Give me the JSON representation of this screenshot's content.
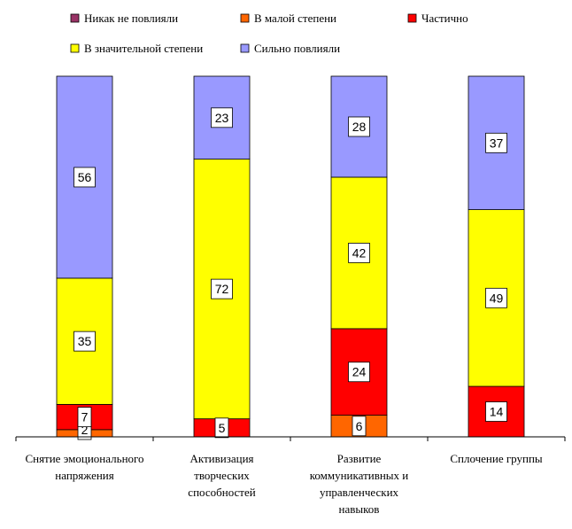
{
  "chart_data": {
    "type": "bar",
    "stacked": true,
    "percent_stacked": true,
    "categories": [
      [
        "Снятие эмоционального",
        "напряжения"
      ],
      [
        "Активизация",
        "творческих",
        "способностей"
      ],
      [
        "Развитие",
        "коммуникативных и",
        "управленческих",
        "навыков"
      ],
      [
        "Сплочение группы"
      ]
    ],
    "series": [
      {
        "name": "Никак не повлияли",
        "color": "#993366",
        "values": [
          0,
          0,
          0,
          0
        ]
      },
      {
        "name": "В малой степени",
        "color": "#FF6600",
        "values": [
          2,
          0,
          6,
          0
        ]
      },
      {
        "name": "Частично",
        "color": "#FF0000",
        "values": [
          7,
          5,
          24,
          14
        ]
      },
      {
        "name": "В значительной степени",
        "color": "#FFFF00",
        "values": [
          35,
          72,
          42,
          49
        ]
      },
      {
        "name": "Сильно повлияли",
        "color": "#9999FF",
        "values": [
          56,
          23,
          28,
          37
        ]
      }
    ],
    "data_labels": true,
    "legend_position": "top",
    "grid": false
  }
}
